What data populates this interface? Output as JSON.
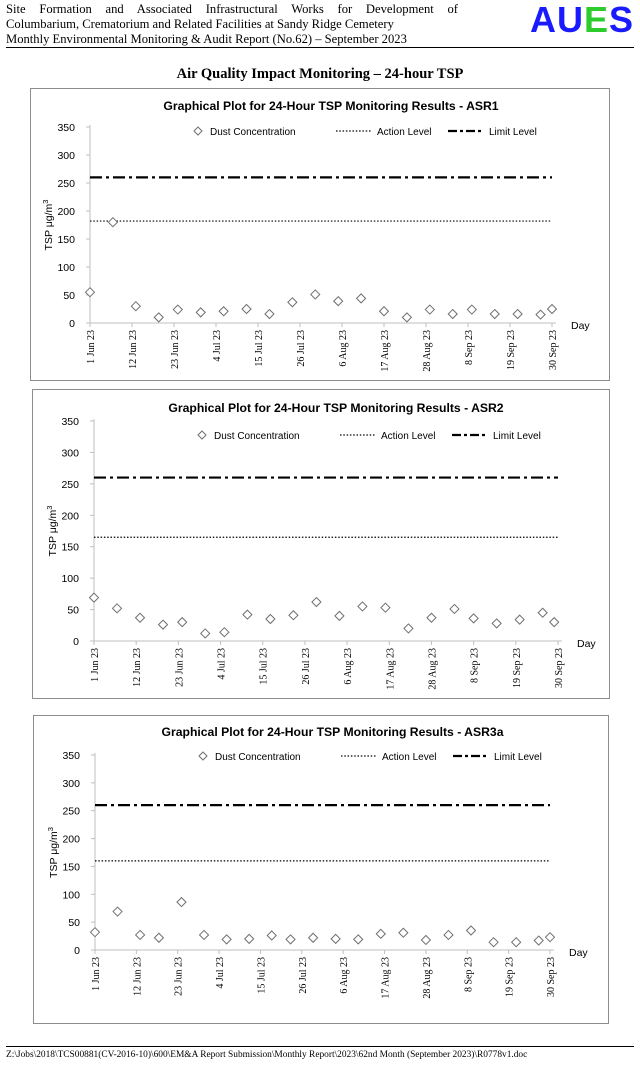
{
  "header": {
    "lines": [
      "Site Formation and Associated Infrastructural Works for Development of",
      "Columbarium, Crematorium and Related Facilities at Sandy Ridge Cemetery",
      "Monthly Environmental Monitoring & Audit Report (No.62) – September 2023"
    ],
    "logo_part1": "AU",
    "logo_part2": "E",
    "logo_part3": "S",
    "logo_color_primary": "#1a1aff",
    "logo_color_accent": "#2dcc2d"
  },
  "page_title": "Air Quality Impact Monitoring – 24-hour TSP",
  "footer": "Z:\\Jobs\\2018\\TCS00881(CV-2016-10)\\600\\EM&A Report Submission\\Monthly Report\\2023\\62nd Month (September 2023)\\R0778v1.doc",
  "chart_data": [
    {
      "type": "scatter",
      "title": "Graphical Plot for 24-Hour TSP Monitoring Results - ASR1",
      "xlabel": "Day",
      "ylabel": "TSP μg/m",
      "ylabel_superscript": "3",
      "ylim": [
        0,
        350
      ],
      "yticks": [
        0,
        50,
        100,
        150,
        200,
        250,
        300,
        350
      ],
      "xlim": [
        "2023-06-01",
        "2023-09-30"
      ],
      "xtick_labels": [
        "1 Jun 23",
        "12 Jun 23",
        "23 Jun 23",
        "4 Jul 23",
        "15 Jul 23",
        "26 Jul 23",
        "6 Aug 23",
        "17 Aug 23",
        "28 Aug 23",
        "8 Sep 23",
        "19 Sep 23",
        "30 Sep 23"
      ],
      "legend": [
        "Dust Concentration",
        "Action Level",
        "Limit Level"
      ],
      "legend_position": "top",
      "grid": false,
      "action_level": 182,
      "limit_level": 260,
      "series": [
        {
          "name": "Dust Concentration",
          "x": [
            "2023-06-01",
            "2023-06-07",
            "2023-06-13",
            "2023-06-19",
            "2023-06-24",
            "2023-06-30",
            "2023-07-06",
            "2023-07-12",
            "2023-07-18",
            "2023-07-24",
            "2023-07-30",
            "2023-08-05",
            "2023-08-11",
            "2023-08-17",
            "2023-08-23",
            "2023-08-29",
            "2023-09-04",
            "2023-09-09",
            "2023-09-15",
            "2023-09-21",
            "2023-09-27",
            "2023-09-30"
          ],
          "y": [
            55,
            180,
            30,
            10,
            24,
            19,
            21,
            25,
            16,
            37,
            51,
            39,
            44,
            21,
            10,
            24,
            16,
            24,
            16,
            16,
            15,
            25
          ]
        }
      ]
    },
    {
      "type": "scatter",
      "title": "Graphical Plot for 24-Hour TSP Monitoring Results - ASR2",
      "xlabel": "Day",
      "ylabel": "TSP μg/m",
      "ylabel_superscript": "3",
      "ylim": [
        0,
        350
      ],
      "yticks": [
        0,
        50,
        100,
        150,
        200,
        250,
        300,
        350
      ],
      "xlim": [
        "2023-06-01",
        "2023-09-30"
      ],
      "xtick_labels": [
        "1 Jun 23",
        "12 Jun 23",
        "23 Jun 23",
        "4 Jul 23",
        "15 Jul 23",
        "26 Jul 23",
        "6 Aug 23",
        "17 Aug 23",
        "28 Aug 23",
        "8 Sep 23",
        "19 Sep 23",
        "30 Sep 23"
      ],
      "legend": [
        "Dust Concentration",
        "Action Level",
        "Limit Level"
      ],
      "legend_position": "top",
      "grid": false,
      "action_level": 165,
      "limit_level": 260,
      "series": [
        {
          "name": "Dust Concentration",
          "x": [
            "2023-06-01",
            "2023-06-07",
            "2023-06-13",
            "2023-06-19",
            "2023-06-24",
            "2023-06-30",
            "2023-07-05",
            "2023-07-11",
            "2023-07-17",
            "2023-07-23",
            "2023-07-29",
            "2023-08-04",
            "2023-08-10",
            "2023-08-16",
            "2023-08-22",
            "2023-08-28",
            "2023-09-03",
            "2023-09-08",
            "2023-09-14",
            "2023-09-20",
            "2023-09-26",
            "2023-09-29"
          ],
          "y": [
            69,
            52,
            37,
            26,
            30,
            12,
            14,
            42,
            35,
            41,
            62,
            40,
            55,
            53,
            20,
            37,
            51,
            36,
            28,
            34,
            45,
            30
          ]
        }
      ]
    },
    {
      "type": "scatter",
      "title": "Graphical Plot for 24-Hour TSP Monitoring Results - ASR3a",
      "xlabel": "Day",
      "ylabel": "TSP μg/m",
      "ylabel_superscript": "3",
      "ylim": [
        0,
        350
      ],
      "yticks": [
        0,
        50,
        100,
        150,
        200,
        250,
        300,
        350
      ],
      "xlim": [
        "2023-06-01",
        "2023-09-30"
      ],
      "xtick_labels": [
        "1 Jun 23",
        "12 Jun 23",
        "23 Jun 23",
        "4 Jul 23",
        "15 Jul 23",
        "26 Jul 23",
        "6 Aug 23",
        "17 Aug 23",
        "28 Aug 23",
        "8 Sep 23",
        "19 Sep 23",
        "30 Sep 23"
      ],
      "legend": [
        "Dust Concentration",
        "Action Level",
        "Limit Level"
      ],
      "legend_position": "top",
      "grid": false,
      "action_level": 160,
      "limit_level": 260,
      "series": [
        {
          "name": "Dust Concentration",
          "x": [
            "2023-06-01",
            "2023-06-07",
            "2023-06-13",
            "2023-06-18",
            "2023-06-24",
            "2023-06-30",
            "2023-07-06",
            "2023-07-12",
            "2023-07-18",
            "2023-07-23",
            "2023-07-29",
            "2023-08-04",
            "2023-08-10",
            "2023-08-16",
            "2023-08-22",
            "2023-08-28",
            "2023-09-03",
            "2023-09-09",
            "2023-09-15",
            "2023-09-21",
            "2023-09-27",
            "2023-09-30"
          ],
          "y": [
            32,
            69,
            27,
            22,
            86,
            27,
            19,
            20,
            26,
            19,
            22,
            20,
            19,
            29,
            31,
            18,
            27,
            35,
            14,
            14,
            17,
            23
          ]
        }
      ]
    }
  ]
}
